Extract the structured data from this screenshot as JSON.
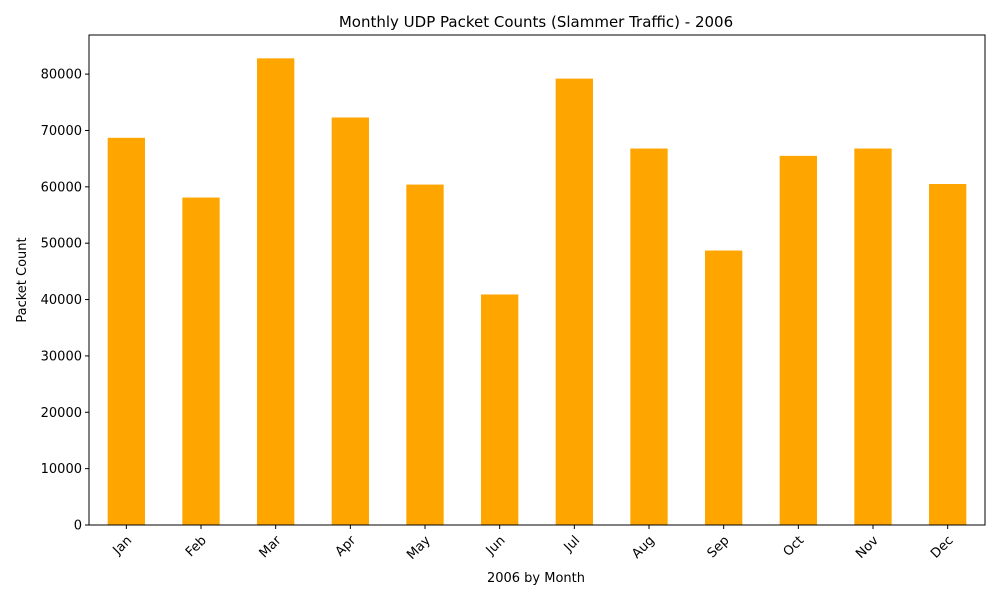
{
  "chart_data": {
    "type": "bar",
    "title": "Monthly UDP Packet Counts (Slammer Traffic) - 2006",
    "xlabel": "2006 by Month",
    "ylabel": "Packet Count",
    "categories": [
      "Jan",
      "Feb",
      "Mar",
      "Apr",
      "May",
      "Jun",
      "Jul",
      "Aug",
      "Sep",
      "Oct",
      "Nov",
      "Dec"
    ],
    "values": [
      68700,
      58100,
      82800,
      72300,
      60400,
      40900,
      79200,
      66800,
      48700,
      65500,
      66800,
      60500
    ],
    "ylim": [
      0,
      86940
    ],
    "yticks": [
      0,
      10000,
      20000,
      30000,
      40000,
      50000,
      60000,
      70000,
      80000
    ],
    "bar_color": "#FFA500",
    "grid": false,
    "legend": "none",
    "x_tick_rotation_deg": 45
  }
}
